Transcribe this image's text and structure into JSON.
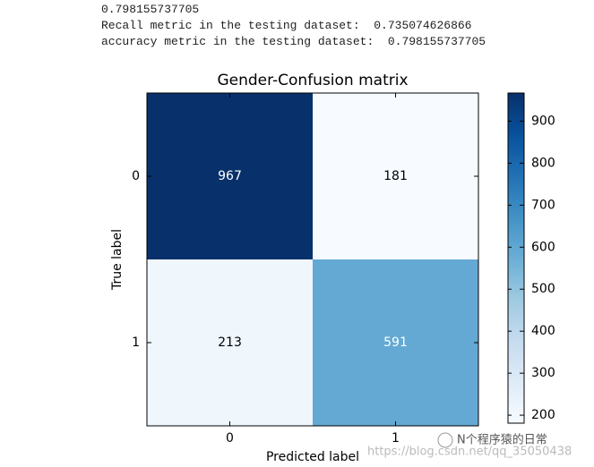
{
  "output_lines": [
    "0.798155737705",
    "Recall metric in the testing dataset:  0.735074626866",
    "accuracy metric in the testing dataset:  0.798155737705"
  ],
  "chart_data": {
    "type": "heatmap",
    "title": "Gender-Confusion matrix",
    "x_label": "Predicted label",
    "y_label": "True label",
    "x_categories": [
      "0",
      "1"
    ],
    "y_categories": [
      "0",
      "1"
    ],
    "values": [
      [
        967,
        181
      ],
      [
        213,
        591
      ]
    ],
    "colormap": "Blues",
    "colorbar_lim": [
      181,
      967
    ],
    "colorbar_ticks": [
      200,
      300,
      400,
      500,
      600,
      700,
      800,
      900
    ]
  },
  "watermark": [
    "N个程序猿的日常",
    "https://blog.csdn.net/qq_35050438"
  ]
}
